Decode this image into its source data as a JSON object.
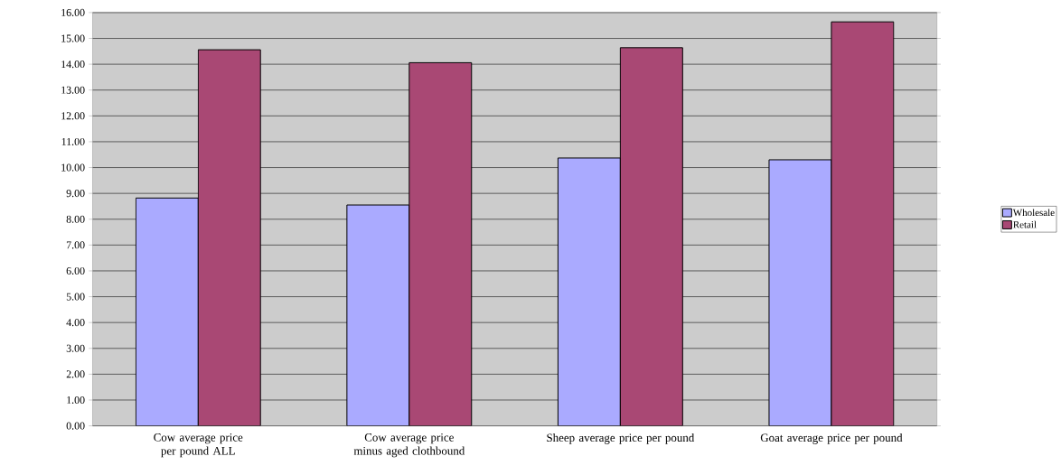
{
  "chart_data": {
    "type": "bar",
    "categories": [
      "Cow average price per pound ALL",
      "Cow average price minus aged clothbound",
      "Sheep average price per pound",
      "Goat average price per pound"
    ],
    "series": [
      {
        "name": "Wholesale",
        "color": "#aaaaff",
        "values": [
          8.82,
          8.55,
          10.37,
          10.3
        ]
      },
      {
        "name": "Retail",
        "color": "#a94874",
        "values": [
          14.56,
          14.06,
          14.64,
          15.64
        ]
      }
    ],
    "ylim": [
      0,
      16
    ],
    "yticks": [
      {
        "value": 0,
        "label": "0.00"
      },
      {
        "value": 1,
        "label": "1.00"
      },
      {
        "value": 2,
        "label": "2.00"
      },
      {
        "value": 3,
        "label": "3.00"
      },
      {
        "value": 4,
        "label": "4.00"
      },
      {
        "value": 5,
        "label": "5.00"
      },
      {
        "value": 6,
        "label": "6.00"
      },
      {
        "value": 7,
        "label": "7.00"
      },
      {
        "value": 8,
        "label": "8.00"
      },
      {
        "value": 9,
        "label": "9.00"
      },
      {
        "value": 10,
        "label": "10.00"
      },
      {
        "value": 11,
        "label": "11.00"
      },
      {
        "value": 12,
        "label": "12.00"
      },
      {
        "value": 13,
        "label": "13.00"
      },
      {
        "value": 14,
        "label": "14.00"
      },
      {
        "value": 15,
        "label": "15.00"
      },
      {
        "value": 16,
        "label": "16.00"
      }
    ],
    "grid": "y",
    "legend": "right"
  }
}
